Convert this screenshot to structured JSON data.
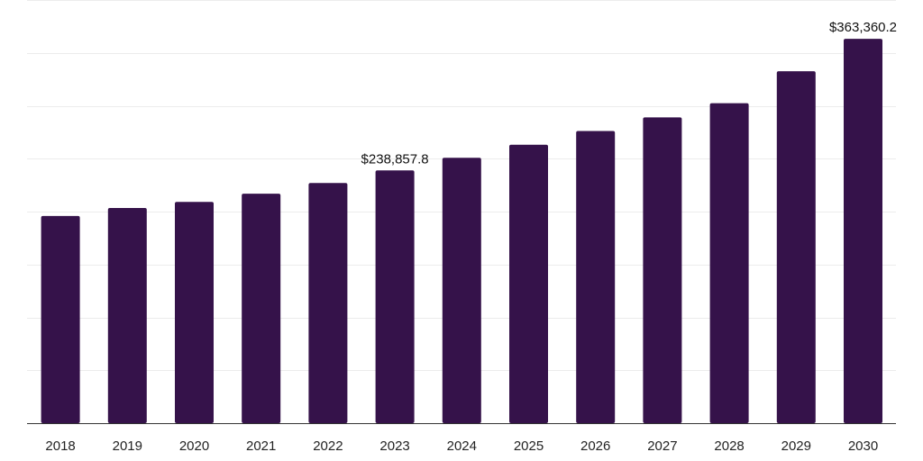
{
  "chart_data": {
    "type": "bar",
    "categories": [
      "2018",
      "2019",
      "2020",
      "2021",
      "2022",
      "2023",
      "2024",
      "2025",
      "2026",
      "2027",
      "2028",
      "2029",
      "2030"
    ],
    "values": [
      195800,
      203400,
      209200,
      216900,
      227000,
      238857.8,
      250800,
      263200,
      276200,
      289000,
      302500,
      332700,
      363360.2
    ],
    "data_labels": [
      {
        "category": "2023",
        "text": "$238,857.8"
      },
      {
        "category": "2030",
        "text": "$363,360.2"
      }
    ],
    "title": "",
    "xlabel": "",
    "ylabel": "",
    "ylim": [
      0,
      400000
    ],
    "gridlines": 8,
    "grid": true,
    "legend": "none",
    "bar_color": "#35124a",
    "grid_color": "#ececec",
    "axis_color": "#333333"
  }
}
